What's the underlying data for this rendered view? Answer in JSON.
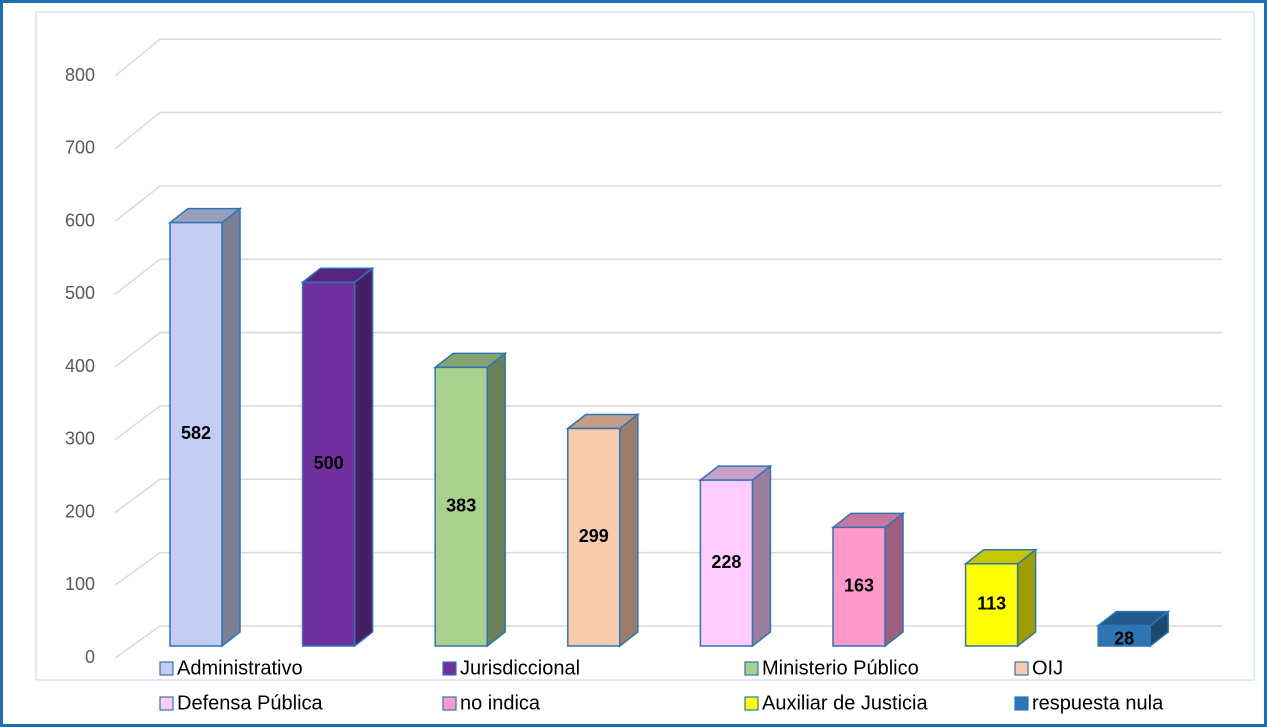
{
  "chart_data": {
    "type": "bar3d",
    "categories": [
      "Administrativo",
      "Jurisdiccional",
      "Ministerio Público",
      "OIJ",
      "Defensa Pública",
      "no indica",
      "Auxiliar de Justicia",
      "respuesta nula"
    ],
    "values": [
      582,
      500,
      383,
      299,
      228,
      163,
      113,
      28
    ],
    "colors": [
      "#c3cdf3",
      "#7030a0",
      "#a9d18e",
      "#f8cbad",
      "#ffccff",
      "#ff99cc",
      "#ffff00",
      "#2e75b6"
    ],
    "ylim": [
      0,
      800
    ],
    "yticks": [
      0,
      100,
      200,
      300,
      400,
      500,
      600,
      700,
      800
    ],
    "grid": true,
    "legend": "bottom"
  }
}
